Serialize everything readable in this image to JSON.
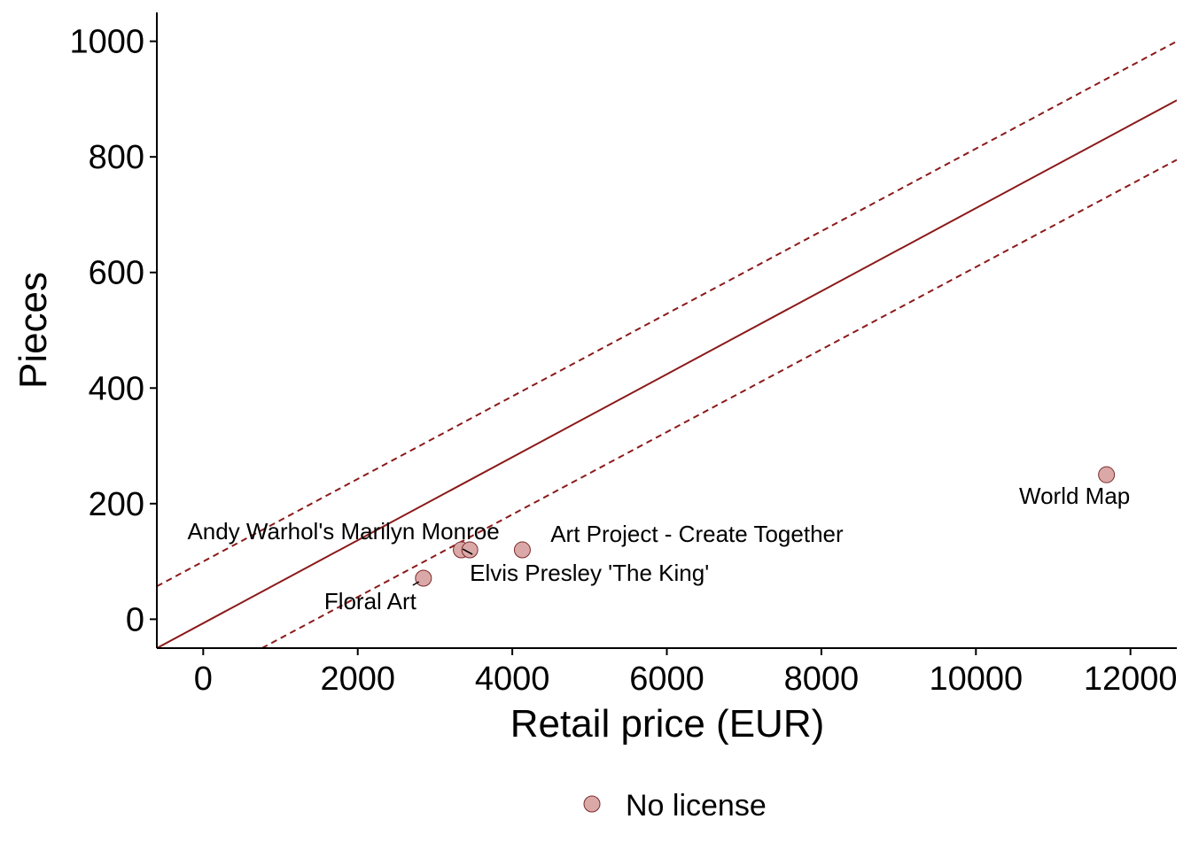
{
  "chart_data": {
    "type": "scatter",
    "xlabel": "Retail price (EUR)",
    "ylabel": "Pieces",
    "xlim": [
      -600,
      12600
    ],
    "ylim": [
      -50,
      1050
    ],
    "x_ticks": [
      0,
      2000,
      4000,
      6000,
      8000,
      10000,
      12000
    ],
    "x_tick_labels": [
      "0",
      "2000",
      "4000",
      "6000",
      "8000",
      "10000",
      "12000"
    ],
    "y_ticks": [
      0,
      200,
      400,
      600,
      800,
      1000
    ],
    "y_tick_labels": [
      "0",
      "200",
      "400",
      "600",
      "800",
      "1000"
    ],
    "grid": false,
    "legend_position": "bottom",
    "series": [
      {
        "name": "No license",
        "color": "#dba8a8",
        "edge_color": "#7a2a2a",
        "points": [
          {
            "label": "Andy Warhol's Marilyn Monroe",
            "x": 3340,
            "y": 120
          },
          {
            "label": "Elvis Presley  'The King'",
            "x": 3450,
            "y": 120
          },
          {
            "label": "Art Project - Create Together",
            "x": 4130,
            "y": 120
          },
          {
            "label": "Floral Art",
            "x": 2850,
            "y": 71
          },
          {
            "label": "World Map",
            "x": 11690,
            "y": 250
          }
        ]
      }
    ],
    "trend": {
      "color": "#8b1a1a",
      "fit": {
        "x0": -600,
        "y0": -50,
        "x1": 12600,
        "y1": 898
      },
      "upper": {
        "x0": -600,
        "y0": 57,
        "x1": 12600,
        "y1": 1000
      },
      "lower": {
        "x0": 760,
        "y0": -50,
        "x1": 12600,
        "y1": 795
      }
    }
  }
}
